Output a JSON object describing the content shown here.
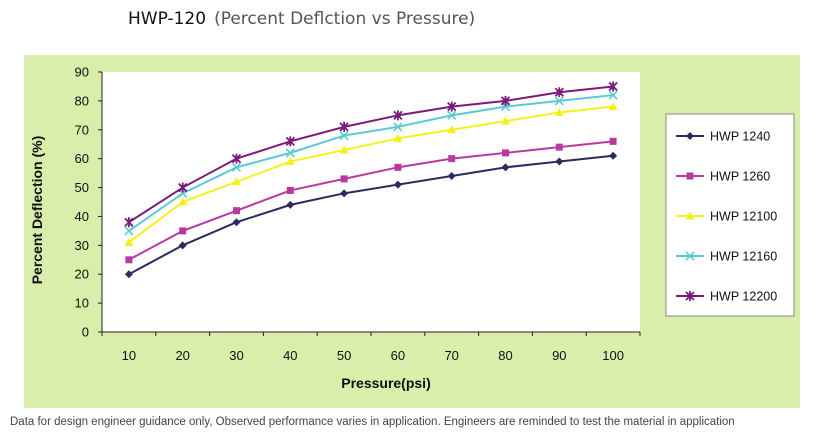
{
  "header": {
    "title": "HWP-120",
    "subtitle": "(Percent Deflction vs Pressure)"
  },
  "footnote": "Data for design engineer guidance only, Observed performance varies in application. Engineers are reminded to test the material in application",
  "colors": {
    "panel_bg": "#d9eeaa",
    "plot_bg": "#ffffff"
  },
  "chart_data": {
    "type": "line",
    "xlabel": "Pressure(psi)",
    "ylabel": "Percent Deflection (%)",
    "x": [
      10,
      20,
      30,
      40,
      50,
      60,
      70,
      80,
      90,
      100
    ],
    "ylim": [
      0,
      90
    ],
    "yticks": [
      0,
      10,
      20,
      30,
      40,
      50,
      60,
      70,
      80,
      90
    ],
    "grid": false,
    "legend_position": "right",
    "series": [
      {
        "name": "HWP 1240",
        "color": "#2b2b5e",
        "marker": "diamond",
        "values": [
          20,
          30,
          38,
          44,
          48,
          51,
          54,
          57,
          59,
          61
        ]
      },
      {
        "name": "HWP 1260",
        "color": "#b83aa0",
        "marker": "square",
        "values": [
          25,
          35,
          42,
          49,
          53,
          57,
          60,
          62,
          64,
          66
        ]
      },
      {
        "name": "HWP 12100",
        "color": "#f2f21a",
        "marker": "triangle",
        "values": [
          31,
          45,
          52,
          59,
          63,
          67,
          70,
          73,
          76,
          78
        ]
      },
      {
        "name": "HWP 12160",
        "color": "#5bc8d6",
        "marker": "x",
        "values": [
          35,
          48,
          57,
          62,
          68,
          71,
          75,
          78,
          80,
          82
        ]
      },
      {
        "name": "HWP 12200",
        "color": "#7a1a7a",
        "marker": "star",
        "values": [
          38,
          50,
          60,
          66,
          71,
          75,
          78,
          80,
          83,
          85
        ]
      }
    ]
  }
}
